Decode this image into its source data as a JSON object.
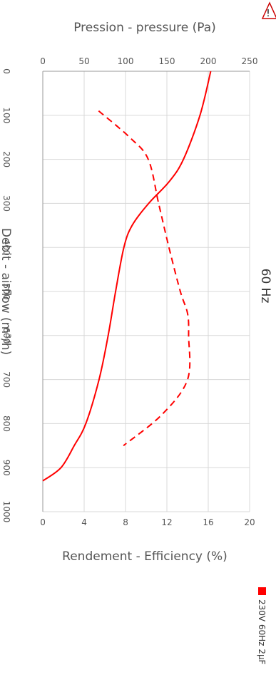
{
  "chart_data": {
    "type": "line",
    "title": "60 Hz",
    "xlabel": "Debit - airflow (m³/h)",
    "xlim": [
      0,
      1000
    ],
    "x_ticks": [
      "0",
      "100",
      "200",
      "300",
      "400",
      "500",
      "600",
      "700",
      "800",
      "900",
      "1000"
    ],
    "ylabel_pressure": "Pression - pressure (Pa)",
    "ylim_pressure": [
      0,
      250
    ],
    "pressure_ticks": [
      "0",
      "50",
      "100",
      "150",
      "200",
      "250"
    ],
    "ylabel_efficiency": "Rendement - Efficiency (%)",
    "ylim_efficiency": [
      0,
      20
    ],
    "efficiency_ticks": [
      "0",
      "4",
      "8",
      "12",
      "16",
      "20"
    ],
    "grid": true,
    "legend_position": "bottom",
    "series": [
      {
        "name": "230V 60Hz 2µF",
        "metric": "pressure",
        "line_style": "solid",
        "color": "#ff0000",
        "x": [
          0,
          100,
          200,
          250,
          300,
          350,
          400,
          500,
          600,
          700,
          800,
          850,
          900,
          930
        ],
        "y": [
          203,
          190,
          170,
          153,
          128,
          108,
          98,
          88,
          79,
          68,
          52,
          38,
          22,
          0
        ]
      },
      {
        "name": "230V 60Hz 2µF",
        "metric": "efficiency",
        "line_style": "dashed",
        "color": "#ff0000",
        "x": [
          90,
          150,
          200,
          300,
          400,
          500,
          550,
          600,
          700,
          780,
          850
        ],
        "y": [
          5.4,
          8.4,
          10.2,
          11.2,
          12.2,
          13.3,
          14,
          14.1,
          14,
          11.5,
          7.8
        ]
      }
    ]
  },
  "warning_icon_label": "!",
  "legend": {
    "label": "230V 60Hz 2µF",
    "color": "#ff0000"
  }
}
